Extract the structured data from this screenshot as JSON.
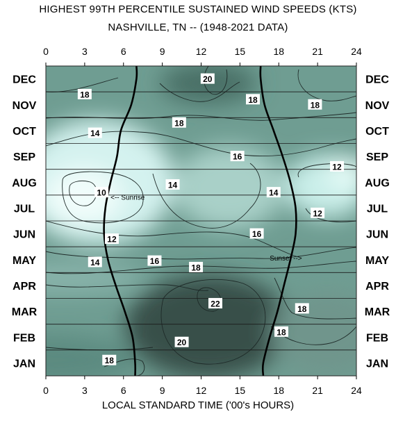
{
  "chart_data": {
    "type": "heatmap",
    "title": "HIGHEST 99TH PERCENTILE SUSTAINED WIND SPEEDS (KTS)",
    "subtitle": "NASHVILLE, TN -- (1948-2021 DATA)",
    "xlabel": "LOCAL STANDARD TIME ('00's HOURS)",
    "xlim": [
      0,
      24
    ],
    "x_ticks": [
      "0",
      "3",
      "6",
      "9",
      "12",
      "15",
      "18",
      "21",
      "24"
    ],
    "y_categories": [
      "JAN",
      "FEB",
      "MAR",
      "APR",
      "MAY",
      "JUN",
      "JUL",
      "AUG",
      "SEP",
      "OCT",
      "NOV",
      "DEC"
    ],
    "contour_labels": [
      {
        "text": "20",
        "x": 12.5,
        "y": 11.5
      },
      {
        "text": "18",
        "x": 3.0,
        "y": 10.9
      },
      {
        "text": "18",
        "x": 16.0,
        "y": 10.7
      },
      {
        "text": "18",
        "x": 20.8,
        "y": 10.5
      },
      {
        "text": "18",
        "x": 10.3,
        "y": 9.8
      },
      {
        "text": "14",
        "x": 3.8,
        "y": 9.4
      },
      {
        "text": "16",
        "x": 14.8,
        "y": 8.5
      },
      {
        "text": "12",
        "x": 22.5,
        "y": 8.1
      },
      {
        "text": "14",
        "x": 9.8,
        "y": 7.4
      },
      {
        "text": "10",
        "x": 4.3,
        "y": 7.1
      },
      {
        "text": "14",
        "x": 17.6,
        "y": 7.1
      },
      {
        "text": "12",
        "x": 21.0,
        "y": 6.3
      },
      {
        "text": "16",
        "x": 16.3,
        "y": 5.5
      },
      {
        "text": "12",
        "x": 5.1,
        "y": 5.3
      },
      {
        "text": "14",
        "x": 3.8,
        "y": 4.4
      },
      {
        "text": "16",
        "x": 8.4,
        "y": 4.45
      },
      {
        "text": "18",
        "x": 11.6,
        "y": 4.2
      },
      {
        "text": "22",
        "x": 13.1,
        "y": 2.8
      },
      {
        "text": "18",
        "x": 19.8,
        "y": 2.6
      },
      {
        "text": "18",
        "x": 18.2,
        "y": 1.7
      },
      {
        "text": "20",
        "x": 10.5,
        "y": 1.3
      },
      {
        "text": "18",
        "x": 4.9,
        "y": 0.6
      }
    ],
    "annotations": [
      {
        "text": "<-- Sunrise",
        "x": 5.0,
        "y": 6.9
      },
      {
        "text": "Sunset -->",
        "x": 17.3,
        "y": 4.55
      }
    ],
    "sunrise_hour": [
      6.9,
      6.7,
      6.1,
      5.4,
      4.8,
      4.5,
      4.6,
      5.0,
      5.5,
      5.8,
      6.6,
      7.0
    ],
    "sunset_hour": [
      16.8,
      17.3,
      17.9,
      18.4,
      18.9,
      19.3,
      19.3,
      18.9,
      18.3,
      17.6,
      16.9,
      16.6
    ]
  }
}
